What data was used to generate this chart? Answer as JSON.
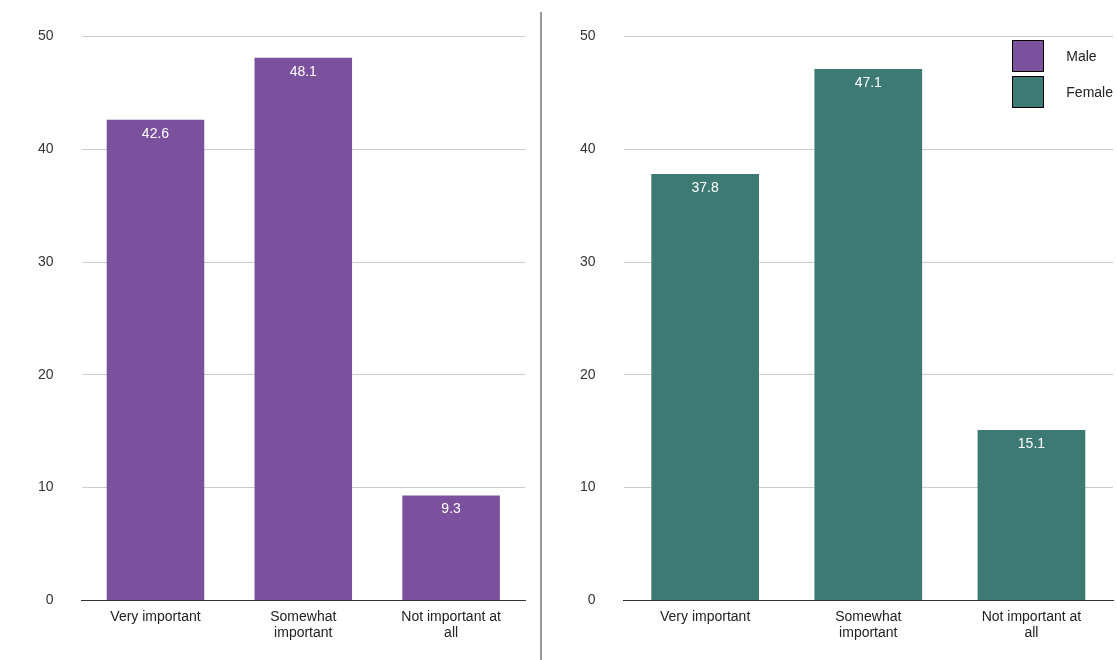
{
  "chart_data": [
    {
      "type": "bar",
      "categories": [
        "Very important",
        "Somewhat important",
        "Not important at all"
      ],
      "series": [
        {
          "name": "Male",
          "color": "#7b519d",
          "values": [
            42.6,
            48.1,
            9.3
          ]
        }
      ],
      "ylim": [
        0,
        50
      ],
      "yticks": [
        0,
        10,
        20,
        30,
        40,
        50
      ],
      "grid": "y",
      "data_labels": true,
      "legend": "top right"
    },
    {
      "type": "bar",
      "categories": [
        "Very important",
        "Somewhat important",
        "Not important at all"
      ],
      "series": [
        {
          "name": "Female",
          "color": "#3d7a73",
          "values": [
            37.8,
            47.1,
            15.1
          ]
        }
      ],
      "ylim": [
        0,
        50
      ],
      "yticks": [
        0,
        10,
        20,
        30,
        40,
        50
      ],
      "grid": "y",
      "data_labels": true,
      "legend": "top right"
    }
  ]
}
